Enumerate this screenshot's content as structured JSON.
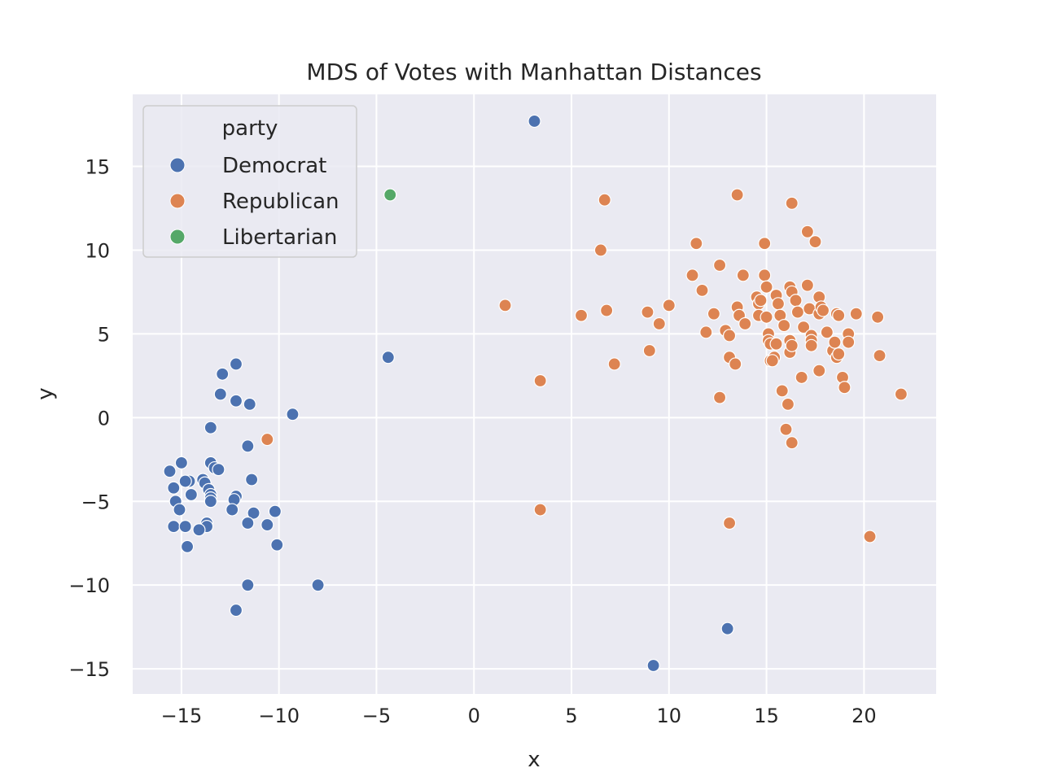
{
  "chart_data": {
    "type": "scatter",
    "title": "MDS of Votes with Manhattan Distances",
    "xlabel": "x",
    "ylabel": "y",
    "xlim": [
      -17.5,
      23.7
    ],
    "ylim": [
      -16.5,
      19.3
    ],
    "xticks": [
      -15,
      -10,
      -5,
      0,
      5,
      10,
      15,
      20
    ],
    "yticks": [
      -15,
      -10,
      -5,
      0,
      5,
      10,
      15
    ],
    "xtick_labels": [
      "−15",
      "−10",
      "−5",
      "0",
      "5",
      "10",
      "15",
      "20"
    ],
    "ytick_labels": [
      "−15",
      "−10",
      "−5",
      "0",
      "5",
      "10",
      "15"
    ],
    "grid": true,
    "legend_title": "party",
    "legend_position": "upper-left",
    "series": [
      {
        "name": "Democrat",
        "color": "#4c72b0",
        "points": [
          [
            3.1,
            17.7
          ],
          [
            -4.4,
            3.6
          ],
          [
            -12.2,
            3.2
          ],
          [
            -12.9,
            2.6
          ],
          [
            -13.0,
            1.4
          ],
          [
            -12.2,
            1.0
          ],
          [
            -11.5,
            0.8
          ],
          [
            -9.3,
            0.2
          ],
          [
            -13.5,
            -0.6
          ],
          [
            -11.6,
            -1.7
          ],
          [
            -15.0,
            -2.7
          ],
          [
            -13.5,
            -2.7
          ],
          [
            -13.3,
            -3.0
          ],
          [
            -13.1,
            -3.1
          ],
          [
            -15.6,
            -3.2
          ],
          [
            -11.4,
            -3.7
          ],
          [
            -14.6,
            -3.8
          ],
          [
            -14.8,
            -3.8
          ],
          [
            -13.9,
            -3.7
          ],
          [
            -13.8,
            -3.9
          ],
          [
            -15.4,
            -4.2
          ],
          [
            -13.6,
            -4.3
          ],
          [
            -14.5,
            -4.6
          ],
          [
            -13.5,
            -4.6
          ],
          [
            -13.5,
            -4.8
          ],
          [
            -12.2,
            -4.7
          ],
          [
            -12.3,
            -4.9
          ],
          [
            -15.3,
            -5.0
          ],
          [
            -13.5,
            -5.0
          ],
          [
            -15.1,
            -5.5
          ],
          [
            -12.4,
            -5.5
          ],
          [
            -11.3,
            -5.7
          ],
          [
            -10.2,
            -5.6
          ],
          [
            -11.6,
            -6.3
          ],
          [
            -13.7,
            -6.3
          ],
          [
            -15.4,
            -6.5
          ],
          [
            -14.8,
            -6.5
          ],
          [
            -13.7,
            -6.5
          ],
          [
            -14.1,
            -6.7
          ],
          [
            -10.6,
            -6.4
          ],
          [
            -14.7,
            -7.7
          ],
          [
            -10.1,
            -7.6
          ],
          [
            -11.6,
            -10.0
          ],
          [
            -8.0,
            -10.0
          ],
          [
            -12.2,
            -11.5
          ],
          [
            13.0,
            -12.6
          ],
          [
            9.2,
            -14.8
          ]
        ]
      },
      {
        "name": "Republican",
        "color": "#dd8452",
        "points": [
          [
            -10.6,
            -1.3
          ],
          [
            1.6,
            6.7
          ],
          [
            3.4,
            2.2
          ],
          [
            3.4,
            -5.5
          ],
          [
            5.5,
            6.1
          ],
          [
            6.5,
            10.0
          ],
          [
            6.7,
            13.0
          ],
          [
            6.8,
            6.4
          ],
          [
            7.2,
            3.2
          ],
          [
            8.9,
            6.3
          ],
          [
            9.0,
            4.0
          ],
          [
            9.5,
            5.6
          ],
          [
            10.0,
            6.7
          ],
          [
            11.2,
            8.5
          ],
          [
            11.4,
            10.4
          ],
          [
            11.7,
            7.6
          ],
          [
            11.9,
            5.1
          ],
          [
            12.3,
            6.2
          ],
          [
            12.6,
            9.1
          ],
          [
            12.6,
            1.2
          ],
          [
            12.9,
            5.2
          ],
          [
            13.1,
            4.9
          ],
          [
            13.1,
            3.6
          ],
          [
            13.1,
            -6.3
          ],
          [
            13.4,
            3.2
          ],
          [
            13.5,
            6.6
          ],
          [
            13.5,
            13.3
          ],
          [
            13.6,
            6.1
          ],
          [
            13.8,
            8.5
          ],
          [
            13.9,
            5.6
          ],
          [
            14.5,
            7.2
          ],
          [
            14.6,
            6.8
          ],
          [
            14.6,
            6.1
          ],
          [
            14.9,
            10.4
          ],
          [
            14.9,
            8.5
          ],
          [
            15.0,
            6.0
          ],
          [
            15.0,
            7.8
          ],
          [
            15.1,
            5.0
          ],
          [
            15.1,
            4.6
          ],
          [
            15.2,
            4.4
          ],
          [
            15.2,
            3.4
          ],
          [
            15.4,
            3.6
          ],
          [
            15.5,
            7.3
          ],
          [
            15.5,
            4.4
          ],
          [
            15.6,
            6.8
          ],
          [
            15.7,
            6.1
          ],
          [
            15.8,
            1.6
          ],
          [
            15.9,
            5.5
          ],
          [
            16.1,
            0.8
          ],
          [
            16.2,
            4.6
          ],
          [
            16.2,
            3.9
          ],
          [
            16.2,
            7.8
          ],
          [
            16.3,
            7.5
          ],
          [
            16.3,
            4.3
          ],
          [
            16.3,
            12.8
          ],
          [
            16.5,
            7.0
          ],
          [
            16.6,
            6.3
          ],
          [
            16.8,
            2.4
          ],
          [
            16.9,
            5.4
          ],
          [
            17.1,
            7.9
          ],
          [
            17.1,
            11.1
          ],
          [
            17.2,
            6.5
          ],
          [
            17.3,
            4.9
          ],
          [
            17.3,
            4.6
          ],
          [
            17.3,
            4.3
          ],
          [
            17.5,
            10.5
          ],
          [
            17.7,
            6.2
          ],
          [
            17.7,
            7.2
          ],
          [
            17.8,
            6.6
          ],
          [
            17.9,
            6.4
          ],
          [
            18.1,
            5.1
          ],
          [
            18.4,
            4.0
          ],
          [
            18.5,
            4.5
          ],
          [
            18.6,
            6.2
          ],
          [
            18.6,
            3.6
          ],
          [
            18.7,
            6.1
          ],
          [
            18.7,
            3.8
          ],
          [
            18.9,
            2.4
          ],
          [
            19.0,
            1.8
          ],
          [
            19.2,
            5.0
          ],
          [
            19.2,
            4.5
          ],
          [
            19.6,
            6.2
          ],
          [
            20.3,
            -7.1
          ],
          [
            20.7,
            6.0
          ],
          [
            20.8,
            3.7
          ],
          [
            21.9,
            1.4
          ],
          [
            16.0,
            -0.7
          ],
          [
            16.3,
            -1.5
          ],
          [
            17.7,
            2.8
          ],
          [
            15.3,
            3.4
          ],
          [
            14.7,
            7.0
          ]
        ]
      },
      {
        "name": "Libertarian",
        "color": "#55a868",
        "points": [
          [
            -4.3,
            13.3
          ]
        ]
      }
    ]
  }
}
